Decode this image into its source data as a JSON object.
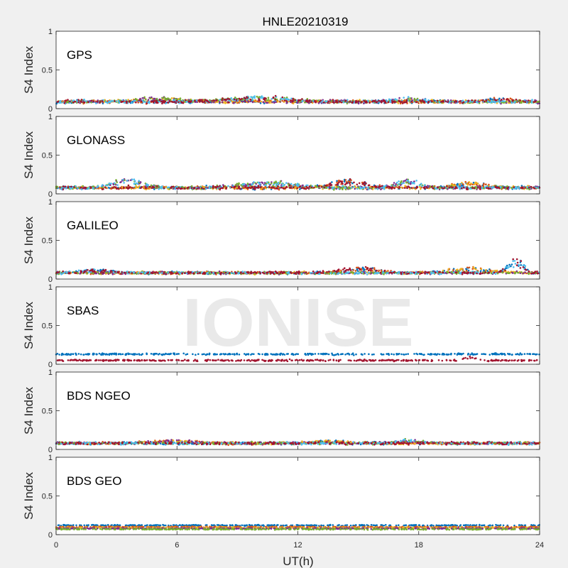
{
  "figure": {
    "title": "HNLE20210319",
    "xlabel": "UT(h)",
    "watermark": "IONISE"
  },
  "colors": {
    "background": "#f0f0f0",
    "axes_bg": "#ffffff",
    "axis": "#262626",
    "watermark": "#e6e6e6",
    "series_palette": [
      "#0072bd",
      "#d95319",
      "#edb120",
      "#7e2f8e",
      "#77ac30",
      "#4dbeee",
      "#a2142f"
    ]
  },
  "chart_data": [
    {
      "type": "scatter",
      "panel_label": "GPS",
      "ylabel": "S4 Index",
      "xlim": [
        0,
        24
      ],
      "ylim": [
        0,
        1
      ],
      "xticks": [
        "0",
        "6",
        "12",
        "18",
        "24"
      ],
      "yticks": [
        "0",
        "0.5",
        "1"
      ],
      "grid": false,
      "series_count": 7,
      "baseline_s4": 0.09,
      "spread": 0.03,
      "bumps": [
        [
          5.0,
          0.04,
          1.5
        ],
        [
          10.0,
          0.05,
          2.0
        ],
        [
          17.5,
          0.03,
          1.0
        ],
        [
          22.0,
          0.03,
          1.0
        ]
      ]
    },
    {
      "type": "scatter",
      "panel_label": "GLONASS",
      "ylabel": "S4 Index",
      "xlim": [
        0,
        24
      ],
      "ylim": [
        0,
        1
      ],
      "xticks": [
        "0",
        "6",
        "12",
        "18",
        "24"
      ],
      "yticks": [
        "0",
        "0.5",
        "1"
      ],
      "grid": false,
      "series_count": 7,
      "baseline_s4": 0.08,
      "spread": 0.03,
      "bumps": [
        [
          3.5,
          0.09,
          1.0
        ],
        [
          10.5,
          0.06,
          1.8
        ],
        [
          14.5,
          0.08,
          1.2
        ],
        [
          17.5,
          0.08,
          0.8
        ],
        [
          20.5,
          0.06,
          1.0
        ]
      ]
    },
    {
      "type": "scatter",
      "panel_label": "GALILEO",
      "ylabel": "S4 Index",
      "xlim": [
        0,
        24
      ],
      "ylim": [
        0,
        1
      ],
      "xticks": [
        "0",
        "6",
        "12",
        "18",
        "24"
      ],
      "yticks": [
        "0",
        "0.5",
        "1"
      ],
      "grid": false,
      "series_count": 7,
      "baseline_s4": 0.08,
      "spread": 0.025,
      "bumps": [
        [
          2.0,
          0.03,
          1.0
        ],
        [
          15.0,
          0.06,
          1.2
        ],
        [
          20.5,
          0.05,
          1.5
        ],
        [
          22.8,
          0.16,
          0.5
        ]
      ]
    },
    {
      "type": "scatter",
      "panel_label": "SBAS",
      "ylabel": "S4 Index",
      "xlim": [
        0,
        24
      ],
      "ylim": [
        0,
        1
      ],
      "xticks": [
        "0",
        "6",
        "12",
        "18",
        "24"
      ],
      "yticks": [
        "0",
        "0.5",
        "1"
      ],
      "grid": false,
      "series_count": 2,
      "levels": [
        0.13,
        0.05
      ],
      "spread": 0.015,
      "bumps": [
        [
          20.5,
          0.04,
          0.4
        ]
      ]
    },
    {
      "type": "scatter",
      "panel_label": "BDS NGEO",
      "ylabel": "S4 Index",
      "xlim": [
        0,
        24
      ],
      "ylim": [
        0,
        1
      ],
      "xticks": [
        "0",
        "6",
        "12",
        "18",
        "24"
      ],
      "yticks": [
        "0",
        "0.5",
        "1"
      ],
      "grid": false,
      "series_count": 7,
      "baseline_s4": 0.08,
      "spread": 0.025,
      "bumps": [
        [
          6.0,
          0.03,
          1.5
        ],
        [
          13.5,
          0.03,
          1.0
        ],
        [
          17.5,
          0.03,
          1.0
        ]
      ]
    },
    {
      "type": "scatter",
      "panel_label": "BDS GEO",
      "ylabel": "S4 Index",
      "xlim": [
        0,
        24
      ],
      "ylim": [
        0,
        1
      ],
      "xticks": [
        "0",
        "6",
        "12",
        "18",
        "24"
      ],
      "yticks": [
        "0",
        "0.5",
        "1"
      ],
      "grid": false,
      "series_count": 5,
      "levels": [
        0.12,
        0.1,
        0.09,
        0.08,
        0.07
      ],
      "spread": 0.01,
      "bumps": []
    }
  ]
}
